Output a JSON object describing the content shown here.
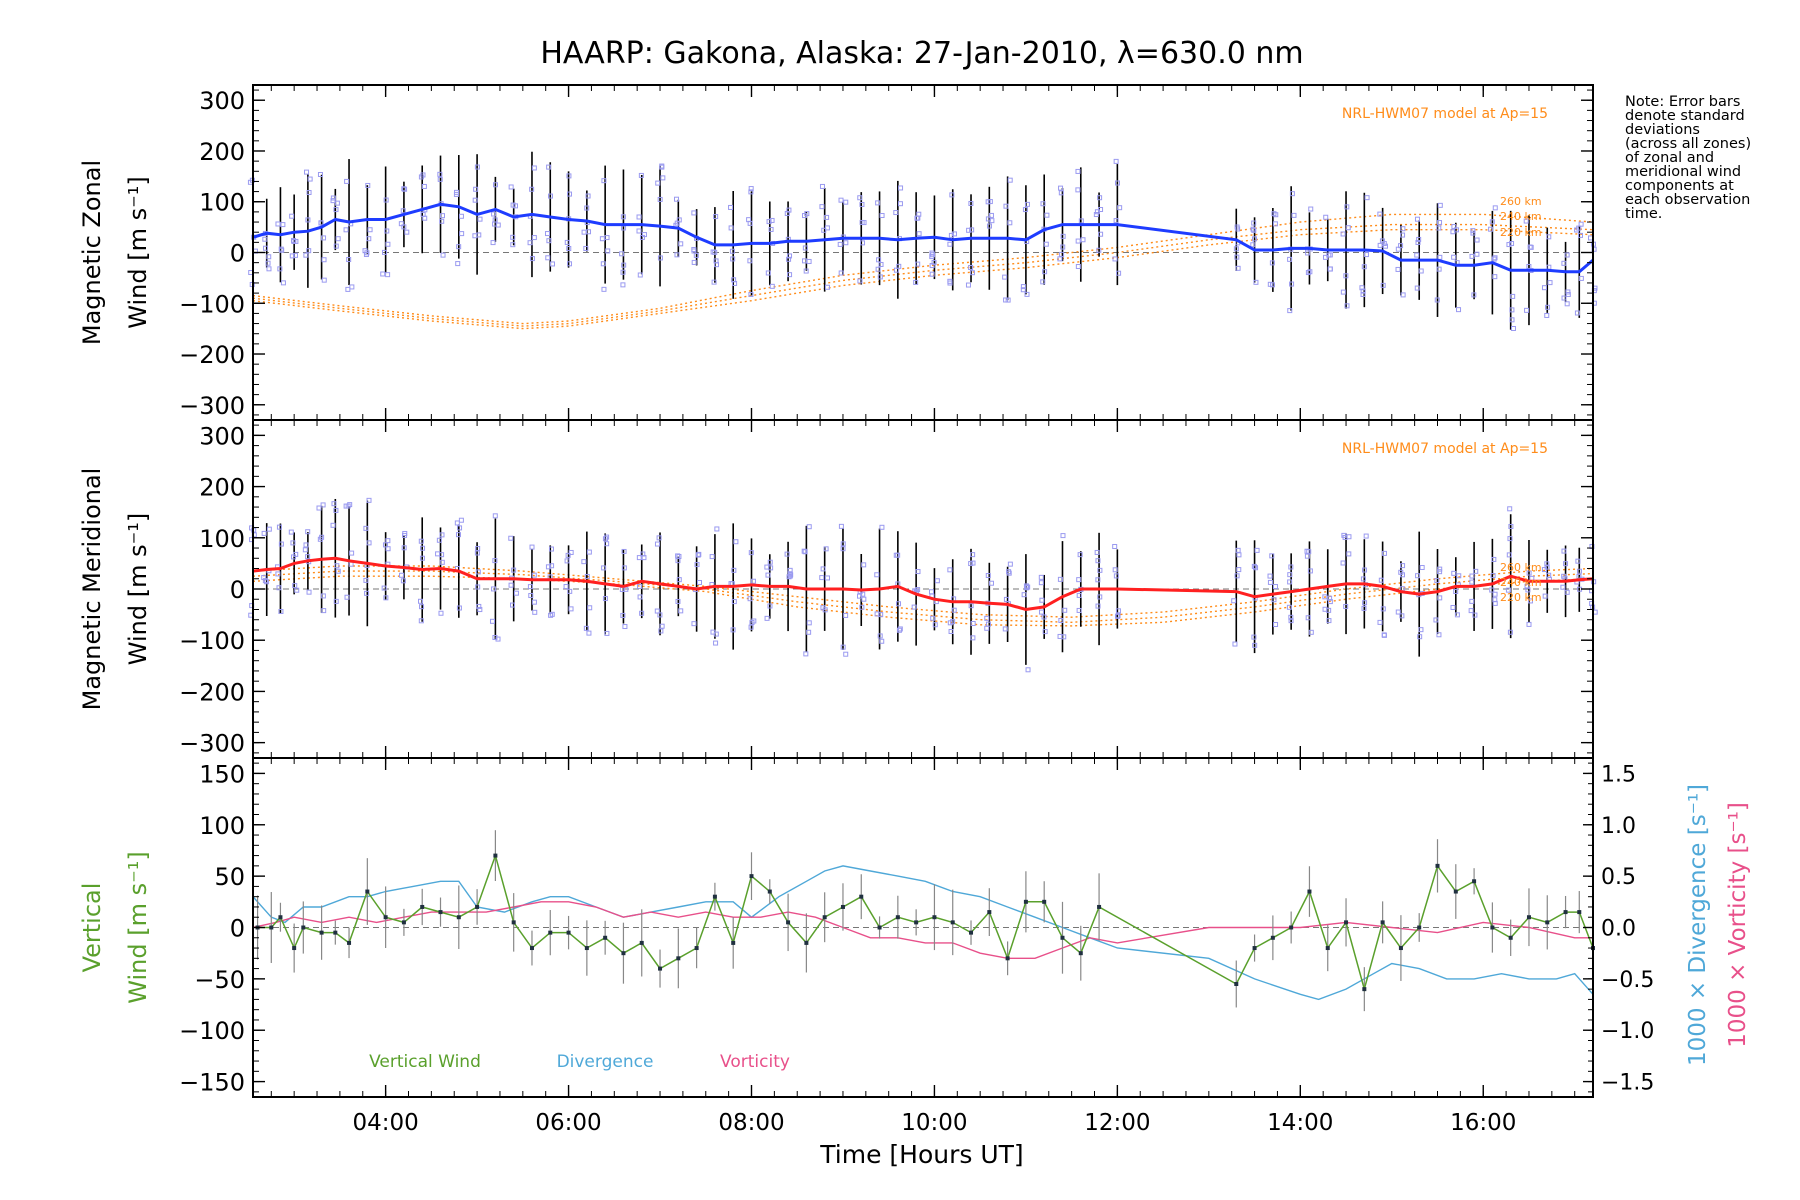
{
  "title": "HAARP: Gakona,  Alaska: 27-Jan-2010, λ=630.0 nm",
  "note": "Note: Error bars\ndenote standard\ndeviations\n(across all zones)\nof zonal and\nmeridional wind\ncomponents at\neach observation\ntime.",
  "x_axis": {
    "label": "Time [Hours UT]",
    "range_hours": [
      2.55,
      17.2
    ],
    "ticks": [
      4,
      6,
      8,
      10,
      12,
      14,
      16
    ],
    "tick_labels": [
      "04:00",
      "06:00",
      "08:00",
      "10:00",
      "12:00",
      "14:00",
      "16:00"
    ]
  },
  "colors": {
    "zonal": "#1e3cff",
    "meridional": "#ff2020",
    "model": "#ff8c1a",
    "scatter": "#9a9af0",
    "vertical": "#5aa02c",
    "divergence": "#4fa8d8",
    "vorticity": "#e8508a"
  },
  "chart_data": [
    {
      "type": "line",
      "panel": "zonal",
      "ylabel_line1": "Magnetic Zonal",
      "ylabel_line2": "Wind [m s⁻¹]",
      "ylim": [
        -330,
        330
      ],
      "yticks": [
        300,
        200,
        100,
        0,
        -100,
        -200,
        -300
      ],
      "ytick_labels": [
        "300",
        "200",
        "100",
        "0",
        "−100",
        "−200",
        "−300"
      ],
      "model_label": "NRL-HWM07 model at Ap=15",
      "model_alt_labels": [
        "260 km",
        "240 km",
        "220 km"
      ],
      "series": [
        {
          "name": "Zonal wind",
          "x": [
            2.55,
            2.7,
            2.85,
            3.0,
            3.15,
            3.3,
            3.45,
            3.6,
            3.8,
            4.0,
            4.2,
            4.4,
            4.6,
            4.8,
            5.0,
            5.2,
            5.4,
            5.6,
            5.8,
            6.0,
            6.2,
            6.4,
            6.6,
            6.8,
            7.0,
            7.2,
            7.4,
            7.6,
            7.8,
            8.0,
            8.2,
            8.4,
            8.6,
            8.8,
            9.0,
            9.2,
            9.4,
            9.6,
            9.8,
            10.0,
            10.2,
            10.4,
            10.6,
            10.8,
            11.0,
            11.2,
            11.4,
            11.6,
            11.8,
            12.0,
            13.3,
            13.5,
            13.7,
            13.9,
            14.1,
            14.3,
            14.5,
            14.7,
            14.9,
            15.1,
            15.3,
            15.5,
            15.7,
            15.9,
            16.1,
            16.3,
            16.5,
            16.7,
            16.9,
            17.05,
            17.2
          ],
          "y": [
            30,
            38,
            35,
            40,
            42,
            50,
            65,
            60,
            65,
            65,
            75,
            85,
            95,
            90,
            75,
            85,
            70,
            75,
            70,
            65,
            62,
            55,
            55,
            55,
            52,
            48,
            30,
            15,
            15,
            18,
            18,
            22,
            22,
            25,
            28,
            28,
            28,
            25,
            28,
            30,
            25,
            28,
            28,
            28,
            25,
            45,
            55,
            55,
            55,
            55,
            25,
            5,
            5,
            8,
            8,
            5,
            5,
            5,
            3,
            -15,
            -15,
            -15,
            -25,
            -25,
            -20,
            -35,
            -35,
            -35,
            -38,
            -38,
            -15
          ]
        },
        {
          "name": "Model 260 km",
          "x": [
            2.55,
            3.5,
            4.5,
            5.5,
            6.0,
            7.0,
            8.0,
            9.0,
            10.0,
            11.0,
            12.0,
            13.0,
            14.0,
            15.0,
            16.0,
            17.2
          ],
          "y": [
            -85,
            -105,
            -125,
            -140,
            -135,
            -110,
            -75,
            -45,
            -25,
            -10,
            10,
            35,
            60,
            75,
            75,
            60
          ]
        },
        {
          "name": "Model 240 km",
          "x": [
            2.55,
            3.5,
            4.5,
            5.5,
            6.0,
            7.0,
            8.0,
            9.0,
            10.0,
            11.0,
            12.0,
            13.0,
            14.0,
            15.0,
            16.0,
            17.2
          ],
          "y": [
            -90,
            -110,
            -130,
            -145,
            -140,
            -115,
            -85,
            -55,
            -35,
            -20,
            0,
            25,
            45,
            55,
            55,
            45
          ]
        },
        {
          "name": "Model 220 km",
          "x": [
            2.55,
            3.5,
            4.5,
            5.5,
            6.0,
            7.0,
            8.0,
            9.0,
            10.0,
            11.0,
            12.0,
            13.0,
            14.0,
            15.0,
            16.0,
            17.2
          ],
          "y": [
            -95,
            -115,
            -135,
            -150,
            -145,
            -120,
            -95,
            -65,
            -45,
            -30,
            -10,
            15,
            35,
            45,
            45,
            35
          ]
        }
      ]
    },
    {
      "type": "line",
      "panel": "meridional",
      "ylabel_line1": "Magnetic Meridional",
      "ylabel_line2": "Wind [m s⁻¹]",
      "ylim": [
        -330,
        330
      ],
      "yticks": [
        300,
        200,
        100,
        0,
        -100,
        -200,
        -300
      ],
      "ytick_labels": [
        "300",
        "200",
        "100",
        "0",
        "−100",
        "−200",
        "−300"
      ],
      "model_label": "NRL-HWM07 model at Ap=15",
      "model_alt_labels": [
        "260 km",
        "240 km",
        "220 km"
      ],
      "series": [
        {
          "name": "Meridional wind",
          "x": [
            2.55,
            2.7,
            2.85,
            3.0,
            3.15,
            3.3,
            3.45,
            3.6,
            3.8,
            4.0,
            4.2,
            4.4,
            4.6,
            4.8,
            5.0,
            5.2,
            5.4,
            5.6,
            5.8,
            6.0,
            6.2,
            6.4,
            6.6,
            6.8,
            7.0,
            7.2,
            7.4,
            7.6,
            7.8,
            8.0,
            8.2,
            8.4,
            8.6,
            8.8,
            9.0,
            9.2,
            9.4,
            9.6,
            9.8,
            10.0,
            10.2,
            10.4,
            10.6,
            10.8,
            11.0,
            11.2,
            11.4,
            11.6,
            11.8,
            12.0,
            13.3,
            13.5,
            13.7,
            13.9,
            14.1,
            14.3,
            14.5,
            14.7,
            14.9,
            15.1,
            15.3,
            15.5,
            15.7,
            15.9,
            16.1,
            16.3,
            16.5,
            16.7,
            16.9,
            17.05,
            17.2
          ],
          "y": [
            35,
            38,
            40,
            50,
            55,
            58,
            60,
            55,
            50,
            45,
            42,
            38,
            40,
            35,
            20,
            20,
            20,
            18,
            18,
            18,
            15,
            10,
            5,
            15,
            10,
            5,
            0,
            5,
            5,
            8,
            5,
            5,
            0,
            0,
            0,
            -2,
            0,
            5,
            -10,
            -20,
            -25,
            -25,
            -28,
            -30,
            -40,
            -35,
            -15,
            0,
            0,
            0,
            -5,
            -15,
            -10,
            -5,
            0,
            5,
            10,
            10,
            5,
            -5,
            -10,
            -5,
            5,
            5,
            10,
            25,
            15,
            15,
            15,
            18,
            20
          ]
        },
        {
          "name": "Model 260 km",
          "x": [
            2.55,
            3.5,
            4.5,
            5.5,
            6.5,
            7.5,
            8.5,
            9.5,
            10.5,
            11.5,
            12.5,
            13.5,
            14.5,
            15.5,
            16.5,
            17.2
          ],
          "y": [
            35,
            45,
            45,
            35,
            20,
            5,
            -15,
            -35,
            -50,
            -55,
            -45,
            -25,
            0,
            20,
            35,
            40
          ]
        },
        {
          "name": "Model 240 km",
          "x": [
            2.55,
            3.5,
            4.5,
            5.5,
            6.5,
            7.5,
            8.5,
            9.5,
            10.5,
            11.5,
            12.5,
            13.5,
            14.5,
            15.5,
            16.5,
            17.2
          ],
          "y": [
            25,
            35,
            35,
            28,
            15,
            0,
            -25,
            -45,
            -60,
            -65,
            -55,
            -35,
            -10,
            10,
            25,
            30
          ]
        },
        {
          "name": "Model 220 km",
          "x": [
            2.55,
            3.5,
            4.5,
            5.5,
            6.5,
            7.5,
            8.5,
            9.5,
            10.5,
            11.5,
            12.5,
            13.5,
            14.5,
            15.5,
            16.5,
            17.2
          ],
          "y": [
            15,
            25,
            25,
            20,
            10,
            -5,
            -35,
            -55,
            -70,
            -72,
            -65,
            -45,
            -20,
            0,
            15,
            20
          ]
        }
      ]
    },
    {
      "type": "line",
      "panel": "vertical",
      "ylabel_line1": "Vertical",
      "ylabel_line2": "Wind [m s⁻¹]",
      "ylim": [
        -165,
        165
      ],
      "yticks": [
        150,
        100,
        50,
        0,
        -50,
        -100,
        -150
      ],
      "ytick_labels": [
        "150",
        "100",
        "50",
        "0",
        "−50",
        "−100",
        "−150"
      ],
      "right_axis": {
        "ylim": [
          -1.65,
          1.65
        ],
        "ticks": [
          1.5,
          1.0,
          0.5,
          0.0,
          -0.5,
          -1.0,
          -1.5
        ],
        "tick_labels": [
          "1.5",
          "1.0",
          "0.5",
          "0.0",
          "−0.5",
          "−1.0",
          "−1.5"
        ],
        "label_divergence": "1000 × Divergence [s⁻¹]",
        "label_vorticity": "1000 × Vorticity [s⁻¹]"
      },
      "legend": [
        "Vertical Wind",
        "Divergence",
        "Vorticity"
      ],
      "series": [
        {
          "name": "Vertical Wind",
          "x": [
            2.6,
            2.75,
            2.85,
            3.0,
            3.1,
            3.3,
            3.45,
            3.6,
            3.8,
            4.0,
            4.2,
            4.4,
            4.6,
            4.8,
            5.0,
            5.2,
            5.4,
            5.6,
            5.8,
            6.0,
            6.2,
            6.4,
            6.6,
            6.8,
            7.0,
            7.2,
            7.4,
            7.6,
            7.8,
            8.0,
            8.2,
            8.4,
            8.6,
            8.8,
            9.0,
            9.2,
            9.4,
            9.6,
            9.8,
            10.0,
            10.2,
            10.4,
            10.6,
            10.8,
            11.0,
            11.2,
            11.4,
            11.6,
            11.8,
            13.3,
            13.5,
            13.7,
            13.9,
            14.1,
            14.3,
            14.5,
            14.7,
            14.9,
            15.1,
            15.3,
            15.5,
            15.7,
            15.9,
            16.1,
            16.3,
            16.5,
            16.7,
            16.9,
            17.05,
            17.2
          ],
          "y": [
            0,
            0,
            10,
            -20,
            0,
            -5,
            -5,
            -15,
            35,
            10,
            5,
            20,
            15,
            10,
            20,
            70,
            5,
            -20,
            -5,
            -5,
            -20,
            -10,
            -25,
            -15,
            -40,
            -30,
            -20,
            30,
            -15,
            50,
            35,
            5,
            -15,
            10,
            20,
            30,
            0,
            10,
            5,
            10,
            5,
            -5,
            15,
            -30,
            25,
            25,
            -10,
            -25,
            20,
            -55,
            -20,
            -10,
            0,
            35,
            -20,
            5,
            -60,
            5,
            -20,
            0,
            60,
            35,
            45,
            0,
            -10,
            10,
            5,
            15,
            15,
            -20
          ]
        },
        {
          "name": "Divergence",
          "x": [
            2.55,
            2.75,
            2.9,
            3.1,
            3.3,
            3.6,
            3.8,
            4.0,
            4.3,
            4.6,
            4.8,
            5.0,
            5.3,
            5.6,
            5.8,
            6.0,
            6.3,
            6.6,
            6.9,
            7.2,
            7.5,
            7.8,
            8.0,
            8.3,
            8.6,
            8.8,
            9.0,
            9.3,
            9.6,
            9.9,
            10.2,
            10.5,
            10.8,
            11.1,
            11.4,
            11.7,
            12.0,
            13.0,
            13.5,
            14.0,
            14.2,
            14.5,
            14.8,
            15.0,
            15.3,
            15.6,
            15.9,
            16.2,
            16.5,
            16.8,
            17.0,
            17.2
          ],
          "y": [
            0.3,
            0.1,
            0.05,
            0.2,
            0.2,
            0.3,
            0.3,
            0.35,
            0.4,
            0.45,
            0.45,
            0.2,
            0.15,
            0.25,
            0.3,
            0.3,
            0.2,
            0.1,
            0.15,
            0.2,
            0.25,
            0.25,
            0.1,
            0.3,
            0.45,
            0.55,
            0.6,
            0.55,
            0.5,
            0.45,
            0.35,
            0.3,
            0.2,
            0.1,
            0.0,
            -0.1,
            -0.2,
            -0.3,
            -0.5,
            -0.65,
            -0.7,
            -0.6,
            -0.45,
            -0.35,
            -0.4,
            -0.5,
            -0.5,
            -0.45,
            -0.5,
            -0.5,
            -0.45,
            -0.65
          ]
        },
        {
          "name": "Vorticity",
          "x": [
            2.55,
            2.8,
            3.0,
            3.3,
            3.6,
            3.9,
            4.2,
            4.5,
            4.8,
            5.1,
            5.4,
            5.7,
            6.0,
            6.3,
            6.6,
            6.9,
            7.2,
            7.5,
            7.8,
            8.1,
            8.4,
            8.7,
            9.0,
            9.3,
            9.6,
            9.9,
            10.2,
            10.5,
            10.8,
            11.1,
            11.4,
            11.7,
            12.0,
            13.0,
            13.5,
            14.0,
            14.5,
            15.0,
            15.5,
            16.0,
            16.5,
            17.0,
            17.2
          ],
          "y": [
            0.0,
            0.05,
            0.1,
            0.05,
            0.1,
            0.05,
            0.1,
            0.15,
            0.15,
            0.15,
            0.2,
            0.25,
            0.25,
            0.2,
            0.1,
            0.15,
            0.1,
            0.15,
            0.1,
            0.1,
            0.15,
            0.1,
            0.0,
            -0.1,
            -0.1,
            -0.15,
            -0.15,
            -0.25,
            -0.3,
            -0.3,
            -0.2,
            -0.1,
            -0.15,
            0.0,
            0.0,
            0.0,
            0.05,
            0.0,
            -0.05,
            0.05,
            0.0,
            -0.1,
            -0.1
          ]
        }
      ]
    }
  ]
}
